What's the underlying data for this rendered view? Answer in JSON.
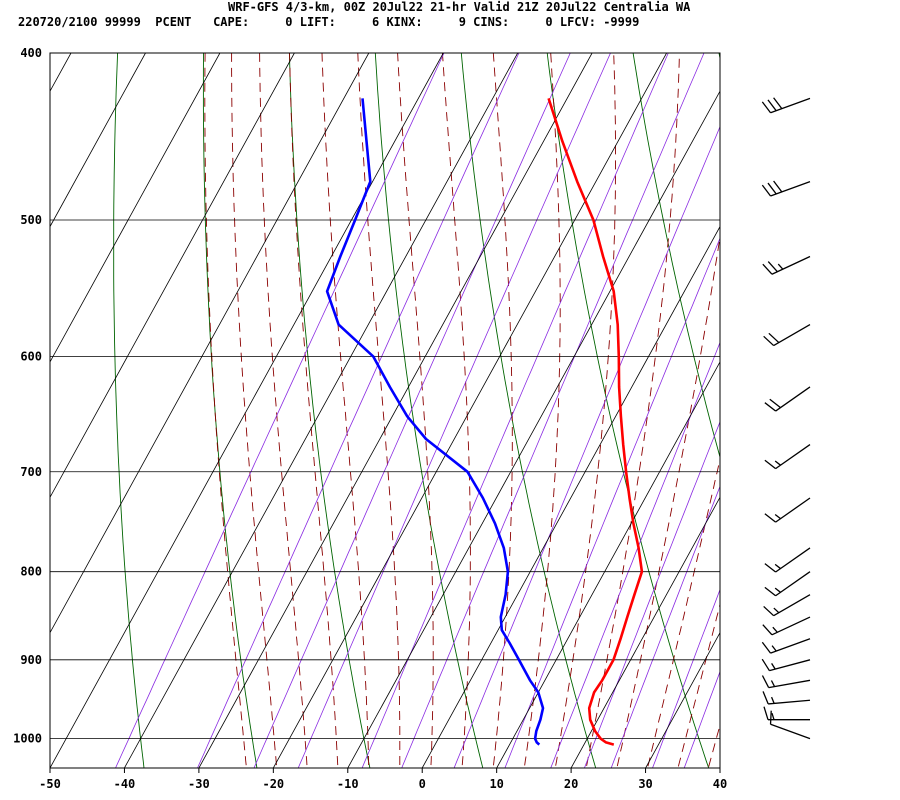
{
  "header": {
    "title": "WRF-GFS 4/3-km, 00Z 20Jul22 21-hr Valid 21Z 20Jul22 Centralia WA",
    "info": "220720/2100 99999  PCENT   CAPE:     0 LIFT:     6 KINX:     9 CINS:     0 LFCV: -9999"
  },
  "chart_data": {
    "type": "line",
    "skew": true,
    "title": "WRF-GFS 4/3-km, 00Z 20Jul22 21-hr Valid 21Z 20Jul22 Centralia WA",
    "xlabel": "",
    "ylabel": "",
    "xlim": [
      -50,
      40
    ],
    "ylim": [
      1040,
      400
    ],
    "y_scale": "log",
    "x_ticks": [
      -50,
      -40,
      -30,
      -20,
      -10,
      0,
      10,
      20,
      30,
      40
    ],
    "x_tick_labels": [
      "-50",
      "-40",
      "-30",
      "-20",
      "-10",
      "0",
      "10",
      "20",
      "30",
      "40"
    ],
    "y_ticks": [
      400,
      500,
      600,
      700,
      800,
      900,
      1000
    ],
    "y_tick_labels": [
      "400",
      "500",
      "600",
      "700",
      "800",
      "900",
      "1000"
    ],
    "grid": true,
    "series": [
      {
        "color": "#ff0000",
        "points": [
          [
            1008,
            24
          ],
          [
            1005,
            22.8
          ],
          [
            1000,
            21.8
          ],
          [
            990,
            20.5
          ],
          [
            975,
            19
          ],
          [
            960,
            18
          ],
          [
            940,
            17.5
          ],
          [
            925,
            17.7
          ],
          [
            910,
            17.7
          ],
          [
            900,
            17.7
          ],
          [
            875,
            17.1
          ],
          [
            850,
            16.4
          ],
          [
            825,
            15.7
          ],
          [
            800,
            15
          ],
          [
            775,
            12.8
          ],
          [
            750,
            10.3
          ],
          [
            725,
            7.9
          ],
          [
            700,
            5.5
          ],
          [
            675,
            3.1
          ],
          [
            650,
            0.7
          ],
          [
            625,
            -1.7
          ],
          [
            600,
            -4
          ],
          [
            575,
            -6.5
          ],
          [
            550,
            -9.5
          ],
          [
            525,
            -13.5
          ],
          [
            500,
            -17.5
          ],
          [
            475,
            -22.5
          ],
          [
            450,
            -27.5
          ],
          [
            425,
            -32.5
          ]
        ]
      },
      {
        "color": "#0000ff",
        "points": [
          [
            1008,
            14
          ],
          [
            1005,
            13.5
          ],
          [
            1000,
            13
          ],
          [
            990,
            12.6
          ],
          [
            975,
            12.3
          ],
          [
            960,
            11.8
          ],
          [
            940,
            10
          ],
          [
            925,
            8
          ],
          [
            900,
            5
          ],
          [
            880,
            2.5
          ],
          [
            865,
            0.5
          ],
          [
            850,
            -0.6
          ],
          [
            825,
            -1.6
          ],
          [
            800,
            -3
          ],
          [
            775,
            -5.3
          ],
          [
            750,
            -8.3
          ],
          [
            725,
            -11.8
          ],
          [
            700,
            -15.8
          ],
          [
            670,
            -23.8
          ],
          [
            650,
            -28
          ],
          [
            625,
            -32.5
          ],
          [
            600,
            -37
          ],
          [
            575,
            -44
          ],
          [
            550,
            -48
          ],
          [
            525,
            -48.8
          ],
          [
            500,
            -49.5
          ],
          [
            475,
            -50.3
          ],
          [
            450,
            -53.8
          ],
          [
            425,
            -57.5
          ]
        ]
      }
    ],
    "background_lines": {
      "isotherm_color": "#000000",
      "dry_adiabat_color": "#006400",
      "moist_adiabat_color": "#8b0000",
      "mixing_ratio_color": "#8a2be2"
    },
    "wind_barbs": [
      {
        "pressure": 425,
        "direction": 250,
        "speed": 30
      },
      {
        "pressure": 475,
        "direction": 250,
        "speed": 30
      },
      {
        "pressure": 525,
        "direction": 245,
        "speed": 25
      },
      {
        "pressure": 575,
        "direction": 240,
        "speed": 20
      },
      {
        "pressure": 625,
        "direction": 235,
        "speed": 20
      },
      {
        "pressure": 675,
        "direction": 235,
        "speed": 15
      },
      {
        "pressure": 725,
        "direction": 235,
        "speed": 15
      },
      {
        "pressure": 775,
        "direction": 235,
        "speed": 15
      },
      {
        "pressure": 800,
        "direction": 235,
        "speed": 15
      },
      {
        "pressure": 825,
        "direction": 240,
        "speed": 15
      },
      {
        "pressure": 850,
        "direction": 245,
        "speed": 15
      },
      {
        "pressure": 875,
        "direction": 250,
        "speed": 15
      },
      {
        "pressure": 900,
        "direction": 255,
        "speed": 15
      },
      {
        "pressure": 925,
        "direction": 260,
        "speed": 15
      },
      {
        "pressure": 950,
        "direction": 265,
        "speed": 15
      },
      {
        "pressure": 975,
        "direction": 270,
        "speed": 15
      },
      {
        "pressure": 1000,
        "direction": 290,
        "speed": 10
      }
    ]
  }
}
